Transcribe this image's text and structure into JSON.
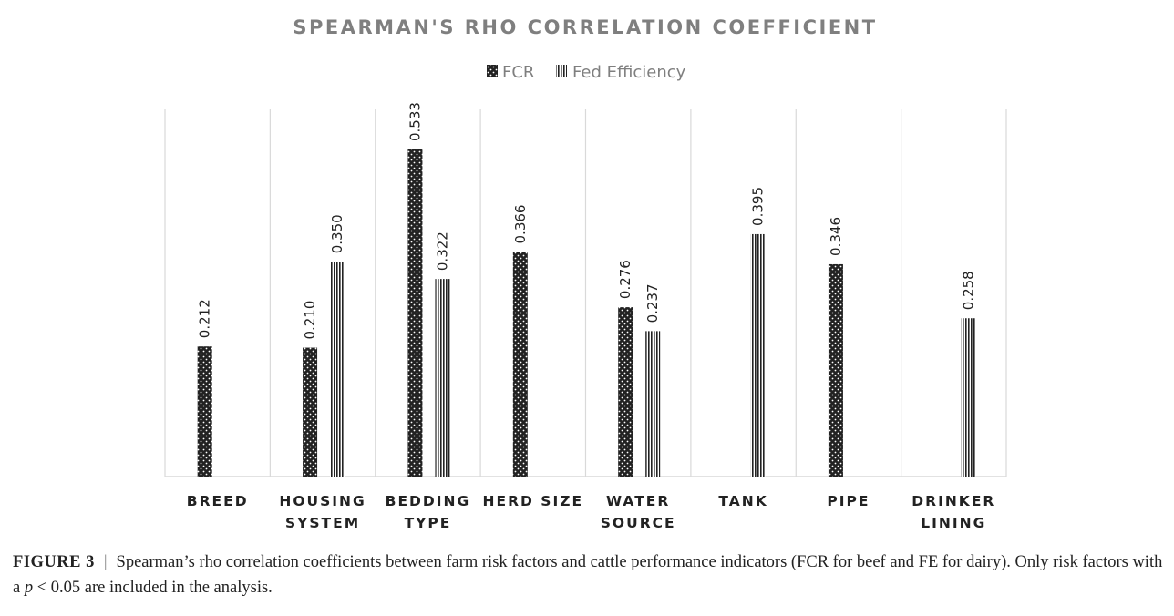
{
  "chart_data": {
    "type": "bar",
    "title": "SPEARMAN'S RHO CORRELATION COEFFICIENT",
    "legend_position": "top",
    "categories": [
      [
        "BREED"
      ],
      [
        "HOUSING",
        "SYSTEM"
      ],
      [
        "BEDDING",
        "TYPE"
      ],
      [
        "HERD SIZE"
      ],
      [
        "WATER",
        "SOURCE"
      ],
      [
        "TANK"
      ],
      [
        "PIPE"
      ],
      [
        "DRINKER",
        "LINING"
      ]
    ],
    "series": [
      {
        "name": "FCR",
        "pattern": "dotted-dark",
        "values": [
          0.212,
          0.21,
          0.533,
          0.366,
          0.276,
          null,
          0.346,
          null
        ],
        "labels": [
          "0.212",
          "0.210",
          "0.533",
          "0.366",
          "0.276",
          "",
          "0.346",
          ""
        ]
      },
      {
        "name": "Fed Efficiency",
        "pattern": "vertical-stripes",
        "values": [
          null,
          0.35,
          0.322,
          null,
          0.237,
          0.395,
          null,
          0.258
        ],
        "labels": [
          "",
          "0.350",
          "0.322",
          "",
          "0.237",
          "0.395",
          "",
          "0.258"
        ]
      }
    ],
    "ylim": [
      0,
      0.6
    ],
    "grid": "vertical category separators",
    "colors": {
      "bar": "#222222",
      "axis": "#d9d9d9",
      "title": "#7f7f7f"
    }
  },
  "caption": {
    "figure_label": "FIGURE 3",
    "separator": "|",
    "text_1": "Spearman’s rho correlation coefficients between farm risk factors and cattle performance indicators (FCR for beef and FE for dairy). Only risk factors with a ",
    "p_symbol": "p",
    "text_2": " < 0.05 are included in the analysis."
  }
}
